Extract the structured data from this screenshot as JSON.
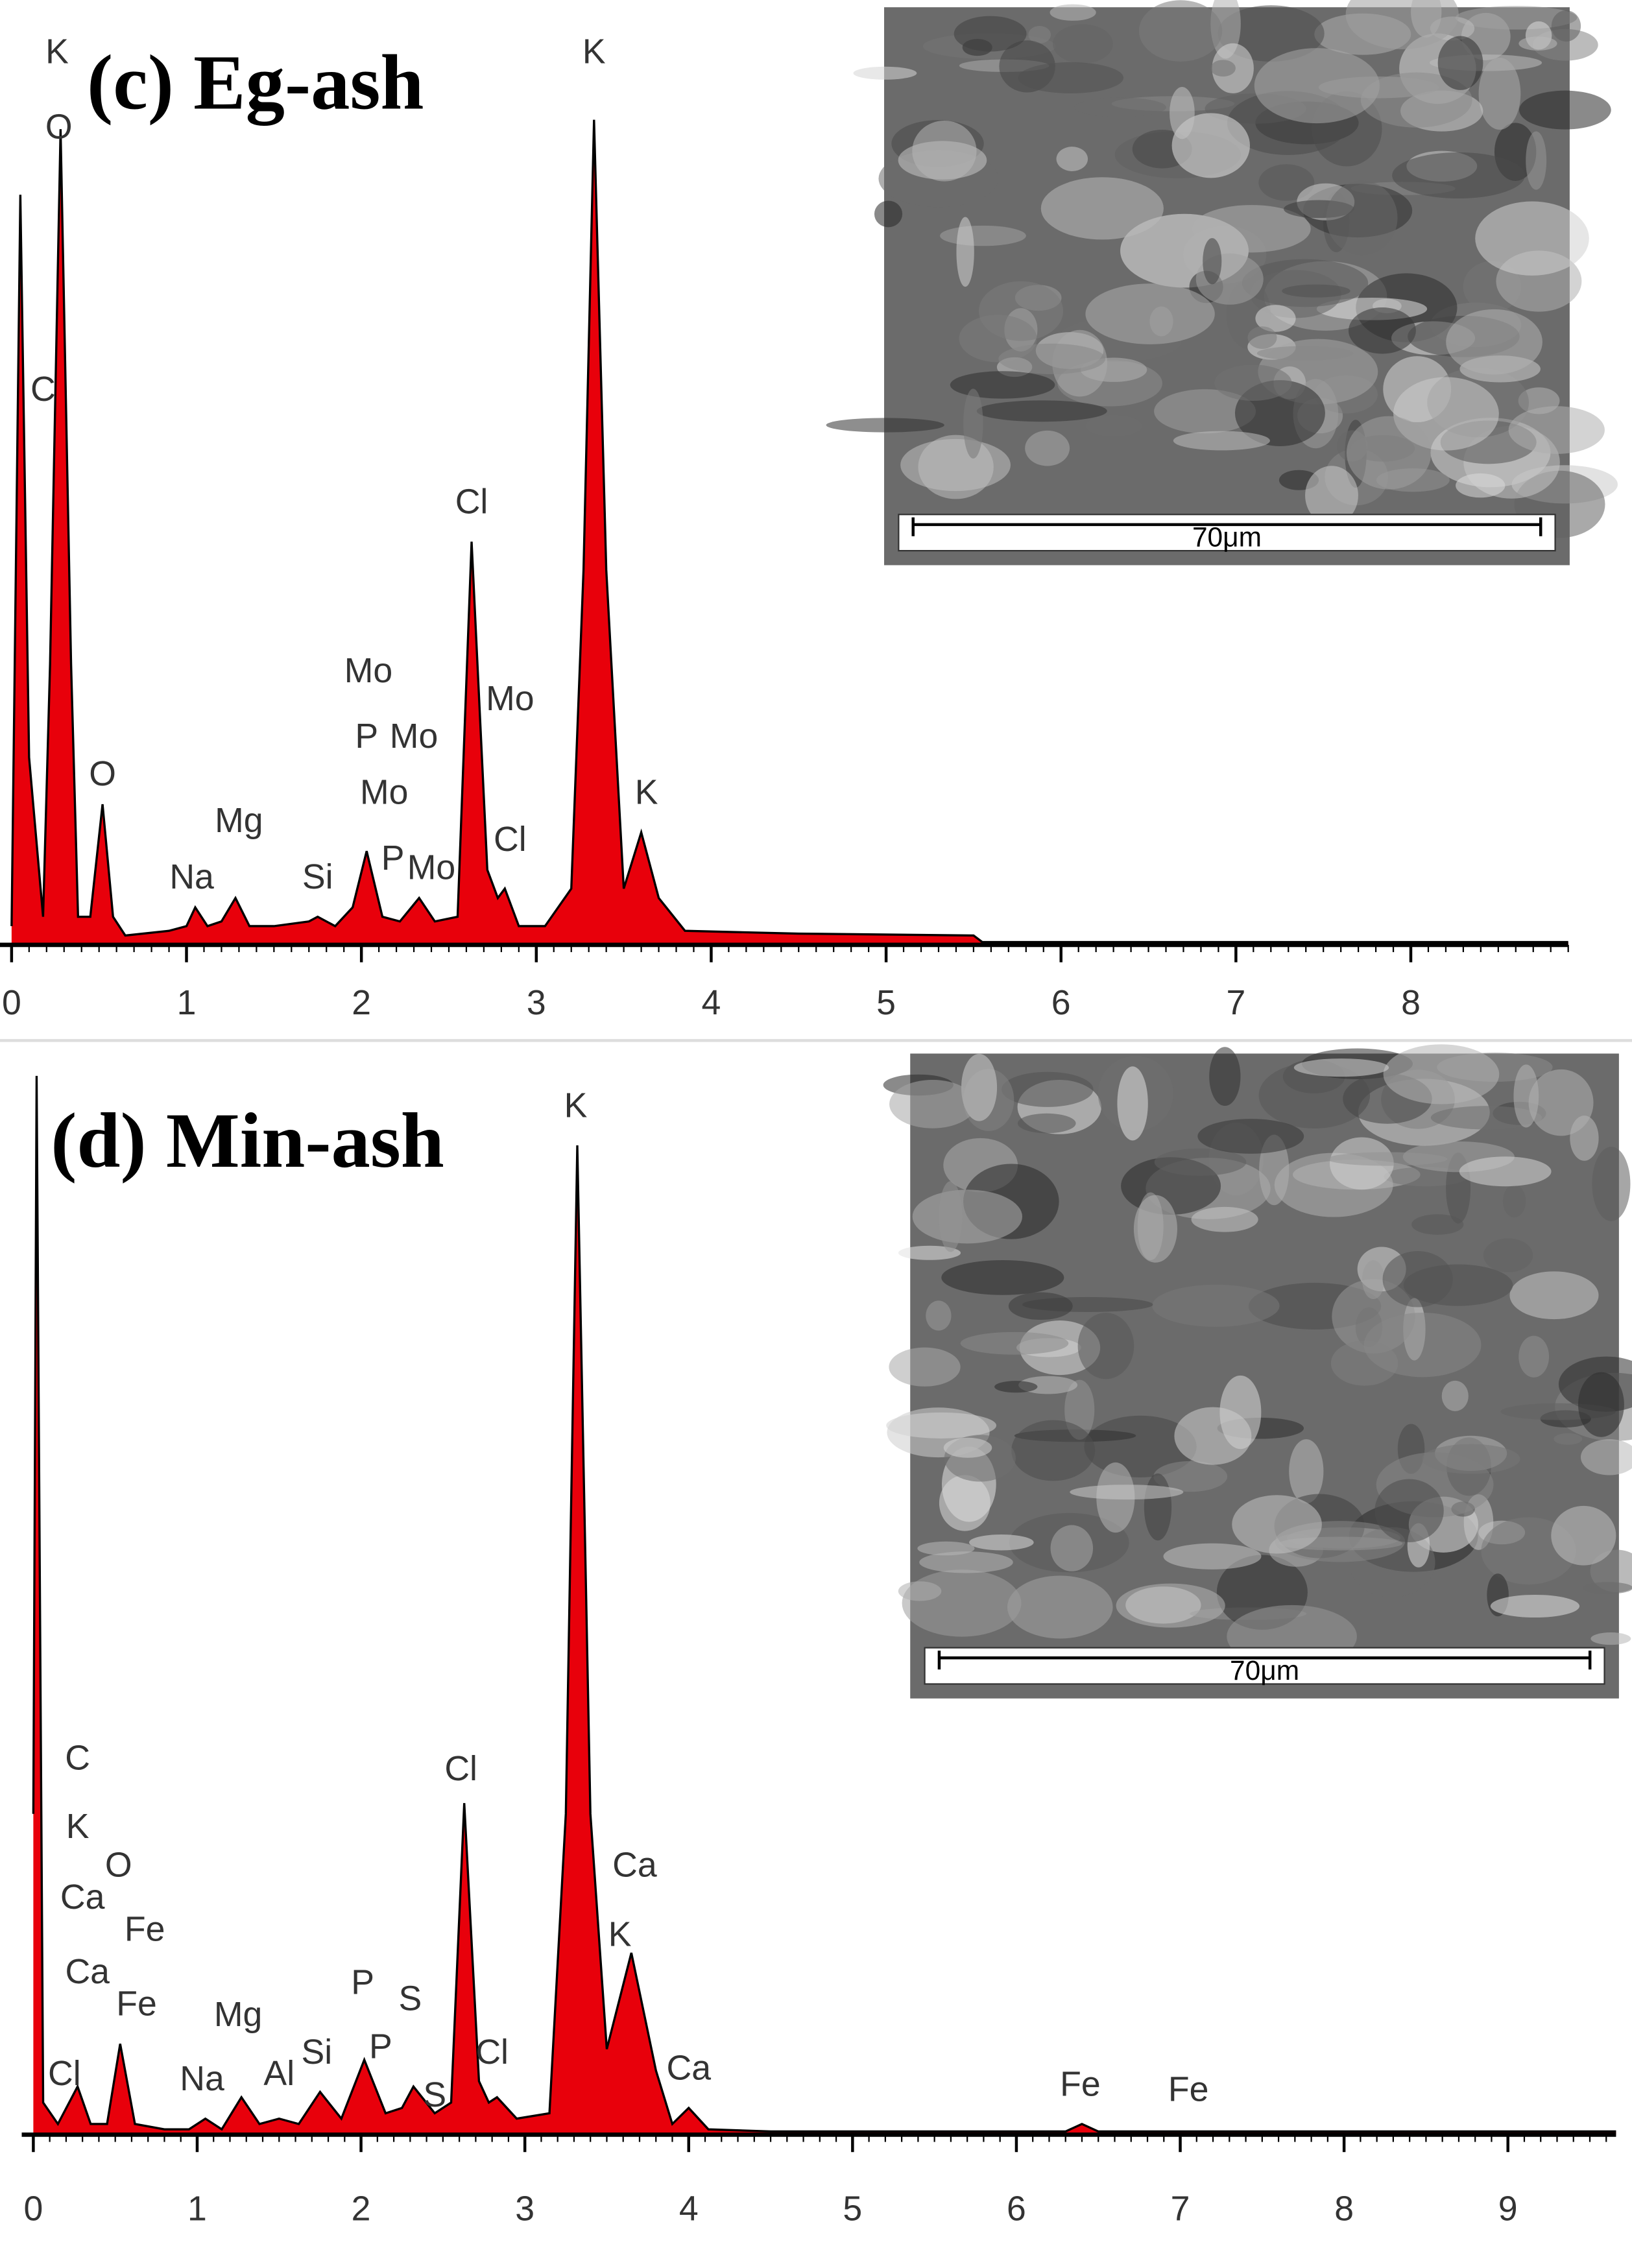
{
  "chart_data": [
    {
      "type": "line",
      "title": "(c) Eg-ash",
      "color": "#e8000b",
      "inset_scale_label": "70μm",
      "x": [
        0,
        0.05,
        0.1,
        0.18,
        0.22,
        0.28,
        0.34,
        0.38,
        0.45,
        0.52,
        0.58,
        0.65,
        0.9,
        1.0,
        1.05,
        1.12,
        1.2,
        1.28,
        1.36,
        1.5,
        1.7,
        1.75,
        1.85,
        1.95,
        2.03,
        2.12,
        2.22,
        2.33,
        2.42,
        2.55,
        2.63,
        2.72,
        2.78,
        2.82,
        2.9,
        3.05,
        3.2,
        3.27,
        3.33,
        3.4,
        3.5,
        3.6,
        3.7,
        3.85,
        4.5,
        5.5,
        5.55,
        8.9
      ],
      "values": [
        2,
        80,
        20,
        3,
        30,
        87,
        30,
        3,
        3,
        15,
        3,
        1,
        1.5,
        2,
        4,
        2,
        2.5,
        5,
        2,
        2,
        2.5,
        3,
        2,
        4,
        10,
        3,
        2.5,
        5,
        2.5,
        3,
        43,
        8,
        5,
        6,
        2,
        2,
        6,
        40,
        88,
        40,
        6,
        12,
        5,
        1.5,
        1.2,
        1,
        0.3,
        0.3
      ],
      "xlim": [
        0,
        8.9
      ],
      "ylim": [
        0,
        100
      ],
      "xticks": [
        0,
        1,
        2,
        3,
        4,
        5,
        6,
        7,
        8
      ],
      "peak_labels": [
        {
          "label": "K",
          "x": 0.26,
          "y": 95
        },
        {
          "label": "O",
          "x": 0.27,
          "y": 87
        },
        {
          "label": "C",
          "x": 0.18,
          "y": 59
        },
        {
          "label": "O",
          "x": 0.52,
          "y": 18
        },
        {
          "label": "Na",
          "x": 1.03,
          "y": 7
        },
        {
          "label": "Mg",
          "x": 1.3,
          "y": 13
        },
        {
          "label": "Si",
          "x": 1.75,
          "y": 7
        },
        {
          "label": "Mo",
          "x": 2.04,
          "y": 29
        },
        {
          "label": "P",
          "x": 2.03,
          "y": 22
        },
        {
          "label": "Mo",
          "x": 2.3,
          "y": 22
        },
        {
          "label": "Mo",
          "x": 2.13,
          "y": 16
        },
        {
          "label": "P",
          "x": 2.18,
          "y": 9
        },
        {
          "label": "Mo",
          "x": 2.4,
          "y": 8
        },
        {
          "label": "Cl",
          "x": 2.63,
          "y": 47
        },
        {
          "label": "Mo",
          "x": 2.85,
          "y": 26
        },
        {
          "label": "Cl",
          "x": 2.85,
          "y": 11
        },
        {
          "label": "K",
          "x": 3.33,
          "y": 95
        },
        {
          "label": "K",
          "x": 3.63,
          "y": 16
        }
      ]
    },
    {
      "type": "line",
      "title": "(d) Min-ash",
      "color": "#e8000b",
      "inset_scale_label": "70μm",
      "x": [
        0,
        0.02,
        0.06,
        0.15,
        0.27,
        0.35,
        0.45,
        0.53,
        0.62,
        0.8,
        0.95,
        1.05,
        1.15,
        1.27,
        1.38,
        1.5,
        1.62,
        1.75,
        1.88,
        2.02,
        2.15,
        2.25,
        2.32,
        2.45,
        2.55,
        2.63,
        2.72,
        2.78,
        2.83,
        2.95,
        3.15,
        3.25,
        3.32,
        3.4,
        3.5,
        3.65,
        3.8,
        3.9,
        4.0,
        4.12,
        4.5,
        6.3,
        6.4,
        6.5,
        9.66
      ],
      "values": [
        30,
        99,
        3,
        1,
        4.5,
        1,
        1,
        8.5,
        1,
        0.5,
        0.5,
        1.5,
        0.5,
        3.5,
        1,
        1.5,
        1,
        4,
        1.5,
        7,
        2,
        2.5,
        4.5,
        2,
        3,
        31,
        5,
        3,
        3.5,
        1.5,
        2,
        30,
        92.5,
        30,
        8,
        17,
        6,
        1,
        2.5,
        0.5,
        0.3,
        0.3,
        1,
        0.3,
        0.3
      ],
      "xlim": [
        0,
        9.66
      ],
      "ylim": [
        0,
        100
      ],
      "xticks": [
        0,
        1,
        2,
        3,
        4,
        5,
        6,
        7,
        8,
        9
      ],
      "peak_labels": [
        {
          "label": "C",
          "x": 0.27,
          "y": 35
        },
        {
          "label": "K",
          "x": 0.27,
          "y": 28.6
        },
        {
          "label": "Ca",
          "x": 0.3,
          "y": 22
        },
        {
          "label": "O",
          "x": 0.52,
          "y": 25
        },
        {
          "label": "Fe",
          "x": 0.68,
          "y": 19
        },
        {
          "label": "Ca",
          "x": 0.33,
          "y": 15
        },
        {
          "label": "Fe",
          "x": 0.63,
          "y": 12
        },
        {
          "label": "Cl",
          "x": 0.19,
          "y": 5.5
        },
        {
          "label": "Na",
          "x": 1.03,
          "y": 5
        },
        {
          "label": "Mg",
          "x": 1.25,
          "y": 11
        },
        {
          "label": "Al",
          "x": 1.5,
          "y": 5.5
        },
        {
          "label": "Si",
          "x": 1.73,
          "y": 7.5
        },
        {
          "label": "P",
          "x": 2.01,
          "y": 14
        },
        {
          "label": "S",
          "x": 2.3,
          "y": 12.5
        },
        {
          "label": "P",
          "x": 2.12,
          "y": 8
        },
        {
          "label": "S",
          "x": 2.45,
          "y": 3.5
        },
        {
          "label": "Cl",
          "x": 2.61,
          "y": 34
        },
        {
          "label": "Cl",
          "x": 2.8,
          "y": 7.5
        },
        {
          "label": "K",
          "x": 3.31,
          "y": 96
        },
        {
          "label": "Ca",
          "x": 3.67,
          "y": 25
        },
        {
          "label": "K",
          "x": 3.58,
          "y": 18.5
        },
        {
          "label": "Ca",
          "x": 4.0,
          "y": 6
        },
        {
          "label": "Fe",
          "x": 6.39,
          "y": 4.5
        },
        {
          "label": "Fe",
          "x": 7.05,
          "y": 4
        }
      ]
    }
  ]
}
